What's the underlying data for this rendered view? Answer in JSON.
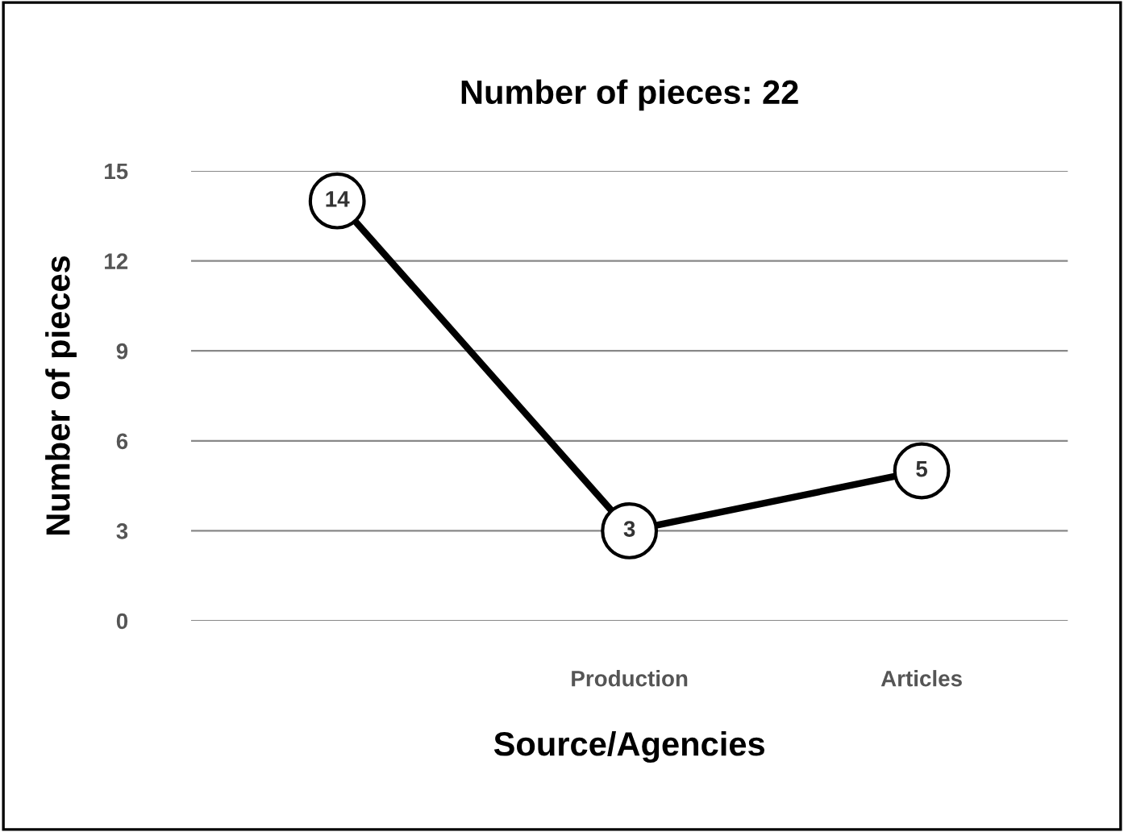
{
  "chart_data": {
    "type": "line",
    "title": "Number of pieces: 22",
    "xlabel": "Source/Agencies",
    "ylabel": "Number of pieces",
    "categories": [
      null,
      "Production",
      "Articles"
    ],
    "series": [
      {
        "color": "#000000",
        "values": [
          14,
          3,
          5
        ]
      }
    ],
    "ylim": [
      0,
      15
    ],
    "yticks": [
      0,
      3,
      6,
      9,
      12,
      15
    ],
    "grid": "y",
    "marker": "circle",
    "line_style": "solid",
    "data_labels": true
  }
}
